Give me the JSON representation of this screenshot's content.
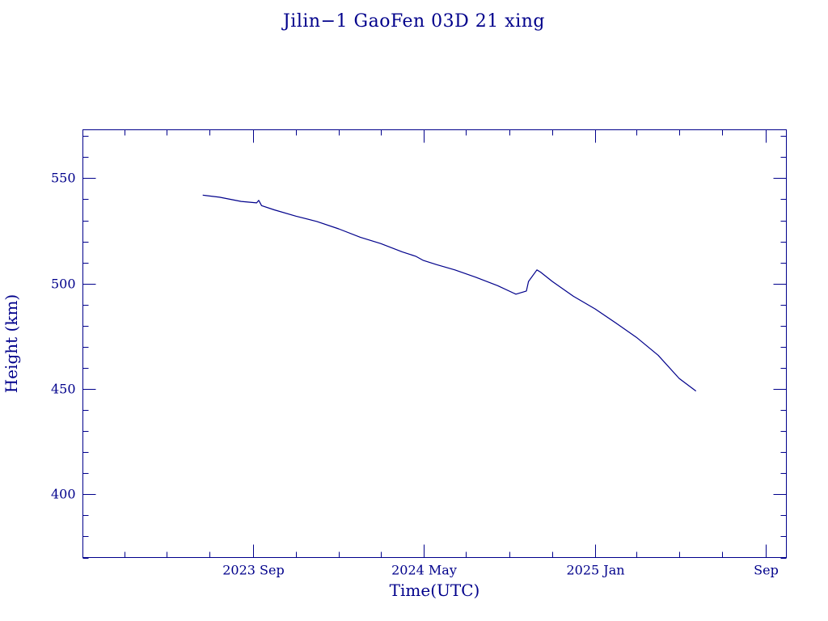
{
  "chart_data": {
    "type": "line",
    "title": "Jilin−1 GaoFen 03D 21 xing",
    "xlabel": "Time(UTC)",
    "ylabel": "Height (km)",
    "xlim": [
      "2023-01-01",
      "2025-10-01"
    ],
    "ylim": [
      370,
      573
    ],
    "xticks": [
      {
        "date": "2023-09-01",
        "label": "2023 Sep"
      },
      {
        "date": "2024-05-01",
        "label": "2024 May"
      },
      {
        "date": "2025-01-01",
        "label": "2025 Jan"
      },
      {
        "date": "2025-09-01",
        "label": "Sep"
      }
    ],
    "x_minor_ticks": [
      "2023-03-01",
      "2023-05-01",
      "2023-07-01",
      "2023-11-01",
      "2024-01-01",
      "2024-03-01",
      "2024-07-01",
      "2024-09-01",
      "2024-11-01",
      "2025-03-01",
      "2025-05-01",
      "2025-07-01"
    ],
    "yticks": [
      400,
      450,
      500,
      550
    ],
    "y_minor_step": 10,
    "grid": false,
    "line_color": "#00008b",
    "series": [
      {
        "x": [
          "2023-06-21",
          "2023-07-15",
          "2023-08-15",
          "2023-09-06",
          "2023-09-09",
          "2023-09-13",
          "2023-10-01",
          "2023-11-01",
          "2023-12-01",
          "2024-01-01",
          "2024-02-01",
          "2024-03-01",
          "2024-04-01",
          "2024-04-20",
          "2024-05-01",
          "2024-05-20",
          "2024-06-15",
          "2024-07-15",
          "2024-08-15",
          "2024-09-10",
          "2024-09-25",
          "2024-09-28",
          "2024-10-10",
          "2024-10-15",
          "2024-11-01",
          "2024-12-01",
          "2025-01-01",
          "2025-02-01",
          "2025-03-01",
          "2025-04-01",
          "2025-05-01",
          "2025-05-25"
        ],
        "y": [
          542,
          541,
          539,
          538.3,
          539.5,
          537,
          535,
          532,
          529.5,
          526,
          522,
          519,
          515,
          513,
          511,
          509,
          506.5,
          503,
          499,
          495,
          496.5,
          501,
          506.5,
          505.5,
          501,
          494,
          488,
          481,
          474.5,
          466,
          455,
          449
        ]
      }
    ]
  }
}
